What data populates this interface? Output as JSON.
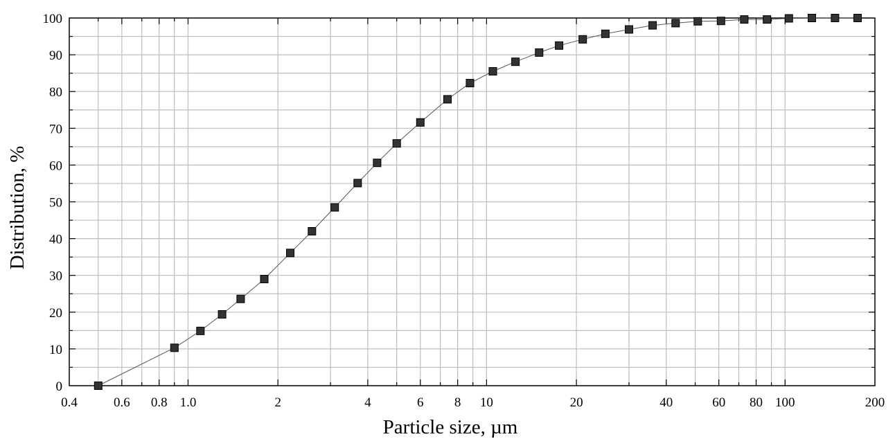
{
  "chart_data": {
    "type": "line",
    "xscale": "log",
    "xlim": [
      0.4,
      200
    ],
    "ylim": [
      0,
      100
    ],
    "grid": true,
    "xlabel": "Particle size, µm",
    "ylabel": "Distribution, %",
    "x_tick_labels": [
      {
        "value": 0.4,
        "label": "0.4"
      },
      {
        "value": 0.6,
        "label": "0.6"
      },
      {
        "value": 0.8,
        "label": "0.8"
      },
      {
        "value": 1.0,
        "label": "1.0"
      },
      {
        "value": 2,
        "label": "2"
      },
      {
        "value": 4,
        "label": "4"
      },
      {
        "value": 6,
        "label": "6"
      },
      {
        "value": 8,
        "label": "8"
      },
      {
        "value": 10,
        "label": "10"
      },
      {
        "value": 20,
        "label": "20"
      },
      {
        "value": 40,
        "label": "40"
      },
      {
        "value": 60,
        "label": "60"
      },
      {
        "value": 80,
        "label": "80"
      },
      {
        "value": 100,
        "label": "100"
      },
      {
        "value": 200,
        "label": "200"
      }
    ],
    "y_tick_labels": [
      "0",
      "10",
      "20",
      "30",
      "40",
      "50",
      "60",
      "70",
      "80",
      "90",
      "100"
    ],
    "series": [
      {
        "marker": "square",
        "color": "#333333",
        "x": [
          0.5,
          0.9,
          1.1,
          1.3,
          1.5,
          1.8,
          2.2,
          2.6,
          3.1,
          3.7,
          4.3,
          5.0,
          6.0,
          7.4,
          8.8,
          10.5,
          12.5,
          15,
          17.5,
          21,
          25,
          30,
          36,
          43,
          51,
          61,
          73,
          87,
          103,
          123,
          147,
          175
        ],
        "y": [
          0,
          10.3,
          14.9,
          19.4,
          23.6,
          29.0,
          36.1,
          42.0,
          48.5,
          55.1,
          60.6,
          65.9,
          71.6,
          77.9,
          82.3,
          85.5,
          88.1,
          90.6,
          92.5,
          94.2,
          95.7,
          96.9,
          98.0,
          98.6,
          99.1,
          99.2,
          99.6,
          99.6,
          99.9,
          100,
          100,
          100
        ]
      }
    ]
  }
}
